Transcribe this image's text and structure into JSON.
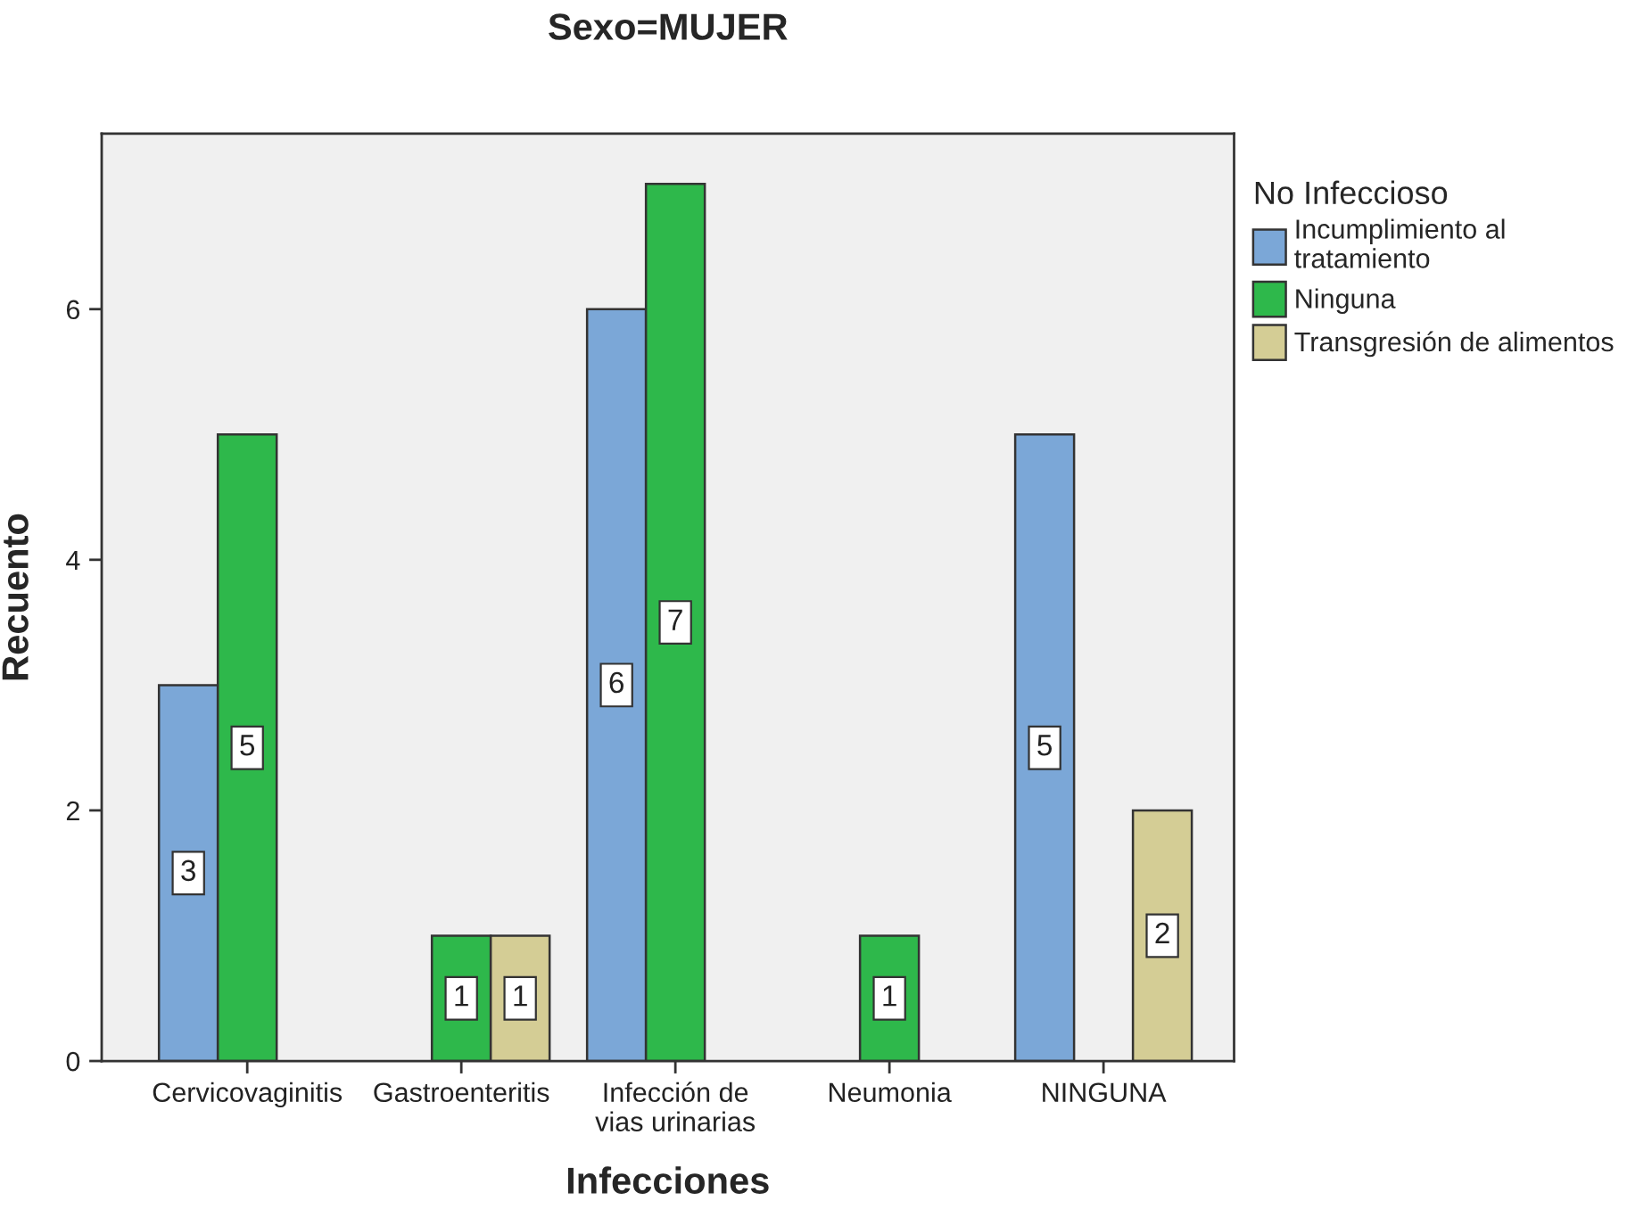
{
  "chart_data": {
    "type": "bar",
    "title": "Sexo=MUJER",
    "xlabel": "Infecciones",
    "ylabel": "Recuento",
    "legend_title": "No Infeccioso",
    "categories": [
      "Cervicovaginitis",
      "Gastroenteritis",
      "Infección de\nvias urinarias",
      "Neumonia",
      "NINGUNA"
    ],
    "series": [
      {
        "name": "Incumplimiento al\ntratamiento",
        "color": "#7ba7d7",
        "values": [
          3,
          null,
          6,
          null,
          5
        ]
      },
      {
        "name": "Ninguna",
        "color": "#2eb84b",
        "values": [
          5,
          1,
          7,
          1,
          null
        ]
      },
      {
        "name": "Transgresión de alimentos",
        "color": "#d4cd95",
        "values": [
          null,
          1,
          null,
          null,
          2
        ]
      }
    ],
    "ylim": [
      0,
      7.4
    ],
    "yticks": [
      0,
      2,
      4,
      6
    ],
    "grid": false,
    "legend": "right",
    "data_labels": true
  }
}
